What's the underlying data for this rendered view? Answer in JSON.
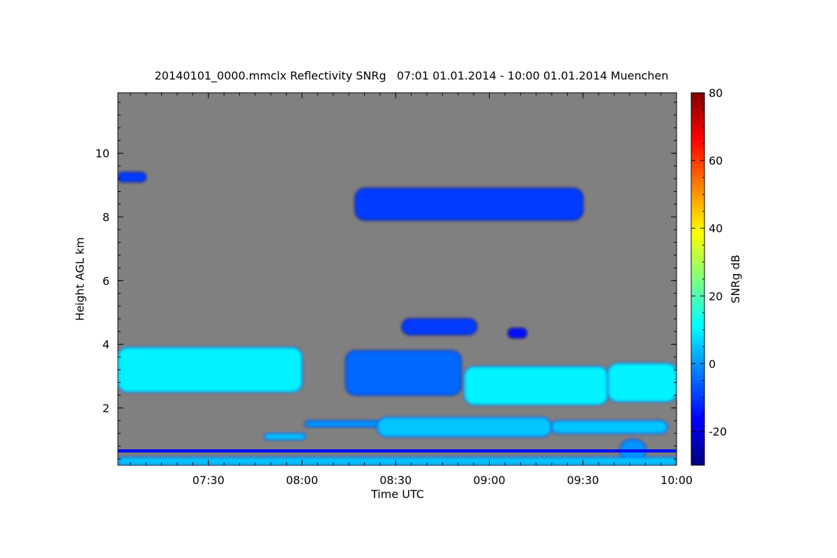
{
  "chart_data": {
    "type": "heatmap",
    "title": "20140101_0000.mmclx Reflectivity SNRg   07:01 01.01.2014 - 10:00 01.01.2014 Muenchen",
    "xlabel": "Time UTC",
    "ylabel": "Height AGL km",
    "xlim": [
      "07:01",
      "10:00"
    ],
    "ylim": [
      0.2,
      11.9
    ],
    "x_ticks": [
      "07:30",
      "08:00",
      "08:30",
      "09:00",
      "09:30",
      "10:00"
    ],
    "y_ticks": [
      2,
      4,
      6,
      8,
      10
    ],
    "background_color": "#808080",
    "colorbar": {
      "label": "SNRg dB",
      "range": [
        -30,
        80
      ],
      "ticks": [
        -20,
        0,
        20,
        40,
        60,
        80
      ],
      "colormap": [
        "#00007f",
        "#0000ff",
        "#007fff",
        "#00ffff",
        "#7fff7f",
        "#ffff00",
        "#ff7f00",
        "#ff0000",
        "#7f0000"
      ]
    },
    "echo_layers": [
      {
        "t_start": "07:01",
        "t_end": "07:10",
        "h_bottom": 9.1,
        "h_top": 9.4,
        "snr_db": -10
      },
      {
        "t_start": "07:01",
        "t_end": "08:00",
        "h_bottom": 2.5,
        "h_top": 3.9,
        "snr_db": 10
      },
      {
        "t_start": "07:48",
        "t_end": "08:01",
        "h_bottom": 1.0,
        "h_top": 1.2,
        "snr_db": 5
      },
      {
        "t_start": "08:01",
        "t_end": "08:25",
        "h_bottom": 1.4,
        "h_top": 1.6,
        "snr_db": 0
      },
      {
        "t_start": "08:17",
        "t_end": "09:30",
        "h_bottom": 7.9,
        "h_top": 8.9,
        "snr_db": -10
      },
      {
        "t_start": "08:14",
        "t_end": "08:51",
        "h_bottom": 2.4,
        "h_top": 3.8,
        "snr_db": -5
      },
      {
        "t_start": "08:32",
        "t_end": "08:56",
        "h_bottom": 4.3,
        "h_top": 4.8,
        "snr_db": -10
      },
      {
        "t_start": "09:06",
        "t_end": "09:12",
        "h_bottom": 4.2,
        "h_top": 4.5,
        "snr_db": -15
      },
      {
        "t_start": "08:52",
        "t_end": "09:38",
        "h_bottom": 2.1,
        "h_top": 3.3,
        "snr_db": 10
      },
      {
        "t_start": "09:38",
        "t_end": "10:00",
        "h_bottom": 2.2,
        "h_top": 3.4,
        "snr_db": 10
      },
      {
        "t_start": "08:24",
        "t_end": "09:20",
        "h_bottom": 1.1,
        "h_top": 1.7,
        "snr_db": 5
      },
      {
        "t_start": "09:20",
        "t_end": "09:57",
        "h_bottom": 1.2,
        "h_top": 1.6,
        "snr_db": 5
      },
      {
        "t_start": "09:42",
        "t_end": "09:50",
        "h_bottom": 0.3,
        "h_top": 1.0,
        "snr_db": 0
      },
      {
        "t_start": "07:01",
        "t_end": "10:00",
        "h_bottom": 0.6,
        "h_top": 0.7,
        "snr_db": -15
      },
      {
        "t_start": "07:01",
        "t_end": "10:00",
        "h_bottom": 0.2,
        "h_top": 0.45,
        "snr_db": 5
      }
    ]
  }
}
